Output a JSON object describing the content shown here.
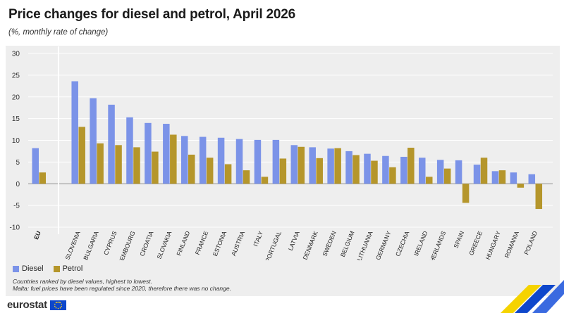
{
  "header": {
    "title": "Price changes for diesel and petrol, April 2026",
    "subtitle": "(%, monthly rate of change)"
  },
  "legend": [
    {
      "label": "Diesel",
      "color": "#7b93e8"
    },
    {
      "label": "Petrol",
      "color": "#b5962b"
    }
  ],
  "notes": [
    "Countries ranked by diesel values, highest to lowest.",
    "Malta: fuel prices have been regulated since 2020, therefore there was no change."
  ],
  "brand": {
    "name": "eurostat",
    "flag_icon": "eu-flag-icon"
  },
  "chart_data": {
    "type": "bar",
    "categories": [
      "EU",
      "SLOVENIA",
      "BULGARIA",
      "CYPRUS",
      "LUXEMBOURG",
      "CROATIA",
      "SLOVAKIA",
      "FINLAND",
      "FRANCE",
      "ESTONIA",
      "AUSTRIA",
      "ITALY",
      "PORTUGAL",
      "LATVIA",
      "DENMARK",
      "SWEDEN",
      "BELGIUM",
      "LITHUANIA",
      "GERMANY",
      "CZECHIA",
      "IRELAND",
      "NETHERLANDS",
      "SPAIN",
      "GREECE",
      "HUNGARY",
      "ROMANIA",
      "POLAND"
    ],
    "series": [
      {
        "name": "Diesel",
        "color": "#7b93e8",
        "values": [
          8.2,
          23.6,
          19.7,
          18.2,
          15.3,
          14.0,
          13.8,
          11.0,
          10.8,
          10.6,
          10.3,
          10.1,
          10.1,
          8.9,
          8.4,
          8.1,
          7.5,
          6.9,
          6.4,
          6.2,
          6.0,
          5.5,
          5.4,
          4.4,
          2.9,
          2.6,
          2.2
        ]
      },
      {
        "name": "Petrol",
        "color": "#b5962b",
        "values": [
          2.6,
          13.1,
          9.3,
          8.9,
          8.4,
          7.4,
          11.3,
          6.7,
          6.0,
          4.5,
          3.1,
          1.6,
          5.8,
          8.5,
          5.9,
          8.2,
          6.6,
          5.3,
          3.8,
          8.3,
          1.6,
          3.5,
          -4.4,
          6.0,
          3.1,
          -0.9,
          -5.8
        ]
      }
    ],
    "yticks": [
      "30",
      "25",
      "20",
      "15",
      "10",
      "5",
      "0",
      "-5",
      "-10"
    ],
    "ylim": [
      -10,
      30
    ],
    "grid": true,
    "legend_position": "bottom-left"
  }
}
